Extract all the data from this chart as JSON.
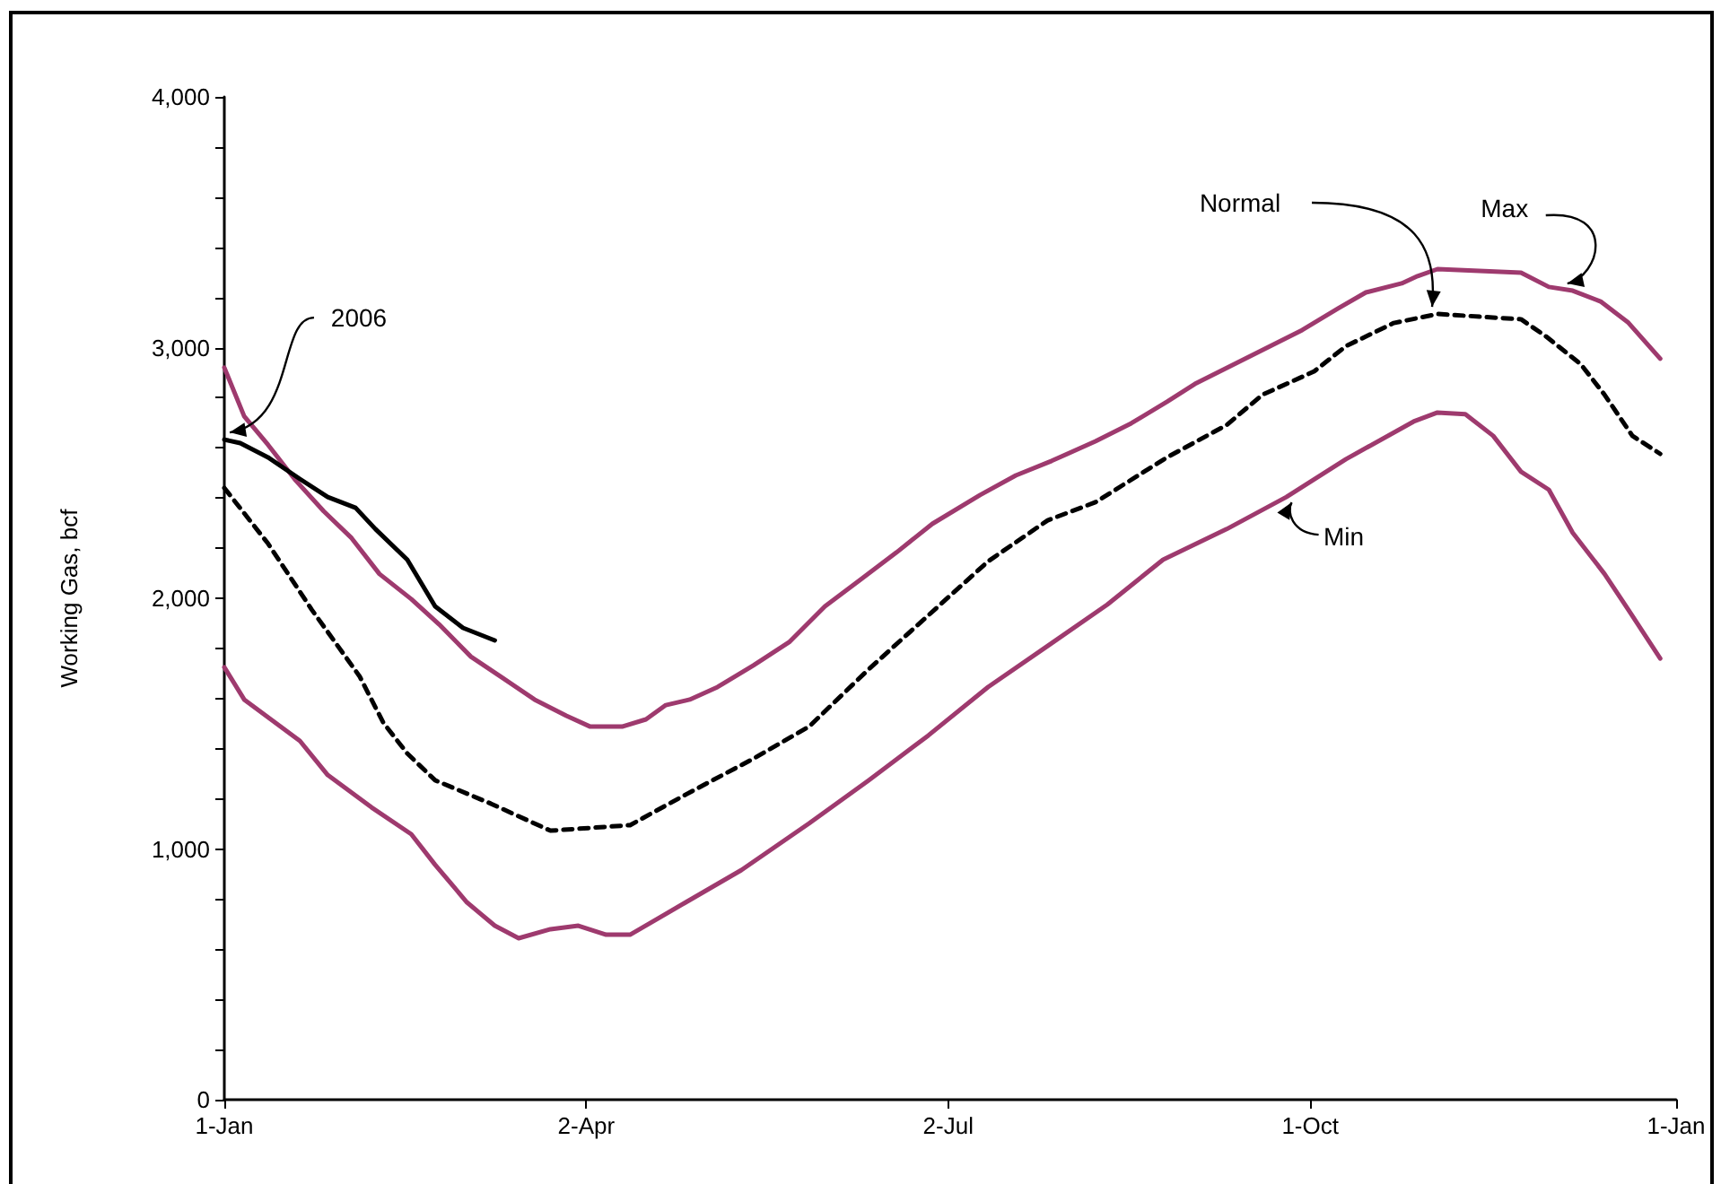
{
  "chart_data": {
    "type": "line",
    "ylabel": "Working Gas, bcf",
    "xlim": [
      "2006-01-01",
      "2007-01-01"
    ],
    "ylim": [
      0,
      4000
    ],
    "xticks": [
      {
        "value": "2006-01-01",
        "label": "1-Jan"
      },
      {
        "value": "2006-04-02",
        "label": "2-Apr"
      },
      {
        "value": "2006-07-02",
        "label": "2-Jul"
      },
      {
        "value": "2006-10-01",
        "label": "1-Oct"
      },
      {
        "value": "2007-01-01",
        "label": "1-Jan"
      }
    ],
    "yticks": [
      0,
      {
        "value": 200,
        "label": null
      },
      {
        "value": 400,
        "label": null
      },
      {
        "value": 600,
        "label": null
      },
      {
        "value": 800,
        "label": null
      },
      {
        "value": 1000,
        "label": "1,000"
      },
      {
        "value": 1200,
        "label": null
      },
      {
        "value": 1400,
        "label": null
      },
      {
        "value": 1600,
        "label": null
      },
      {
        "value": 1800,
        "label": null
      },
      {
        "value": 2000,
        "label": "2,000"
      },
      {
        "value": 2200,
        "label": null
      },
      {
        "value": 2400,
        "label": null
      },
      {
        "value": 2600,
        "label": null
      },
      {
        "value": 2800,
        "label": null
      },
      {
        "value": 3000,
        "label": "3,000"
      },
      {
        "value": 3200,
        "label": null
      },
      {
        "value": 3400,
        "label": null
      },
      {
        "value": 3600,
        "label": null
      },
      {
        "value": 3800,
        "label": null
      },
      {
        "value": 4000,
        "label": "4,000"
      }
    ],
    "grid": false,
    "legend": false,
    "marker": "none",
    "series": [
      {
        "name": "Max",
        "color": "#9e3a6e",
        "line_style": "solid",
        "x": [
          "2006-01-01",
          "2006-01-06",
          "2006-01-12",
          "2006-01-19",
          "2006-01-26",
          "2006-02-02",
          "2006-02-09",
          "2006-02-17",
          "2006-02-24",
          "2006-03-04",
          "2006-03-12",
          "2006-03-20",
          "2006-03-28",
          "2006-04-03",
          "2006-04-11",
          "2006-04-17",
          "2006-04-22",
          "2006-04-28",
          "2006-05-05",
          "2006-05-14",
          "2006-05-23",
          "2006-06-01",
          "2006-06-10",
          "2006-06-19",
          "2006-06-28",
          "2006-07-10",
          "2006-07-19",
          "2006-07-28",
          "2006-08-08",
          "2006-08-17",
          "2006-08-26",
          "2006-09-02",
          "2006-09-11",
          "2006-09-20",
          "2006-09-29",
          "2006-10-08",
          "2006-10-15",
          "2006-10-24",
          "2006-10-28",
          "2006-11-02",
          "2006-11-23",
          "2006-11-30",
          "2006-12-06",
          "2006-12-13",
          "2006-12-20",
          "2006-12-28"
        ],
        "values": [
          2920,
          2726,
          2612,
          2469,
          2347,
          2240,
          2097,
          1997,
          1896,
          1767,
          1682,
          1596,
          1531,
          1488,
          1488,
          1517,
          1574,
          1596,
          1646,
          1732,
          1825,
          1968,
          2075,
          2183,
          2297,
          2412,
          2490,
          2548,
          2626,
          2698,
          2784,
          2855,
          2927,
          2998,
          3070,
          3156,
          3220,
          3256,
          3285,
          3313,
          3299,
          3242,
          3227,
          3184,
          3099,
          2956
        ]
      },
      {
        "name": "Normal",
        "color": "#000000",
        "line_style": "dashed",
        "x": [
          "2006-01-01",
          "2006-01-12",
          "2006-01-23",
          "2006-02-04",
          "2006-02-10",
          "2006-02-16",
          "2006-02-23",
          "2006-03-09",
          "2006-03-24",
          "2006-04-13",
          "2006-04-27",
          "2006-05-14",
          "2006-05-28",
          "2006-06-12",
          "2006-06-27",
          "2006-07-12",
          "2006-07-27",
          "2006-08-08",
          "2006-08-26",
          "2006-09-10",
          "2006-09-19",
          "2006-10-02",
          "2006-10-10",
          "2006-10-22",
          "2006-11-02",
          "2006-11-23",
          "2006-11-29",
          "2006-12-08",
          "2006-12-14",
          "2006-12-21",
          "2006-12-28"
        ],
        "values": [
          2440,
          2218,
          1954,
          1689,
          1503,
          1381,
          1274,
          1181,
          1073,
          1095,
          1217,
          1360,
          1488,
          1717,
          1932,
          2147,
          2311,
          2383,
          2562,
          2691,
          2812,
          2905,
          3006,
          3098,
          3134,
          3113,
          3048,
          2934,
          2812,
          2648,
          2576
        ]
      },
      {
        "name": "Min",
        "color": "#9e3a6e",
        "line_style": "solid",
        "x": [
          "2006-01-01",
          "2006-01-06",
          "2006-01-20",
          "2006-01-27",
          "2006-02-07",
          "2006-02-17",
          "2006-02-23",
          "2006-03-03",
          "2006-03-10",
          "2006-03-16",
          "2006-03-24",
          "2006-03-31",
          "2006-04-07",
          "2006-04-13",
          "2006-04-27",
          "2006-05-11",
          "2006-05-28",
          "2006-06-12",
          "2006-06-27",
          "2006-07-12",
          "2006-07-27",
          "2006-08-11",
          "2006-08-25",
          "2006-09-10",
          "2006-09-25",
          "2006-10-10",
          "2006-10-27",
          "2006-11-02",
          "2006-11-09",
          "2006-11-16",
          "2006-11-23",
          "2006-11-30",
          "2006-12-06",
          "2006-12-14",
          "2006-12-20",
          "2006-12-28"
        ],
        "values": [
          1725,
          1596,
          1431,
          1295,
          1166,
          1059,
          937,
          787,
          694,
          644,
          680,
          694,
          658,
          658,
          787,
          916,
          1102,
          1274,
          1453,
          1646,
          1810,
          1975,
          2154,
          2276,
          2404,
          2555,
          2705,
          2741,
          2734,
          2648,
          2505,
          2433,
          2261,
          2097,
          1954,
          1760
        ]
      },
      {
        "name": "2006",
        "color": "#000000",
        "line_style": "solid",
        "x": [
          "2006-01-01",
          "2006-01-05",
          "2006-01-12",
          "2006-01-20",
          "2006-01-27",
          "2006-02-03",
          "2006-02-08",
          "2006-02-16",
          "2006-02-23",
          "2006-03-02",
          "2006-03-10"
        ],
        "values": [
          2633,
          2619,
          2562,
          2476,
          2404,
          2361,
          2276,
          2154,
          1968,
          1882,
          1832
        ]
      }
    ]
  }
}
